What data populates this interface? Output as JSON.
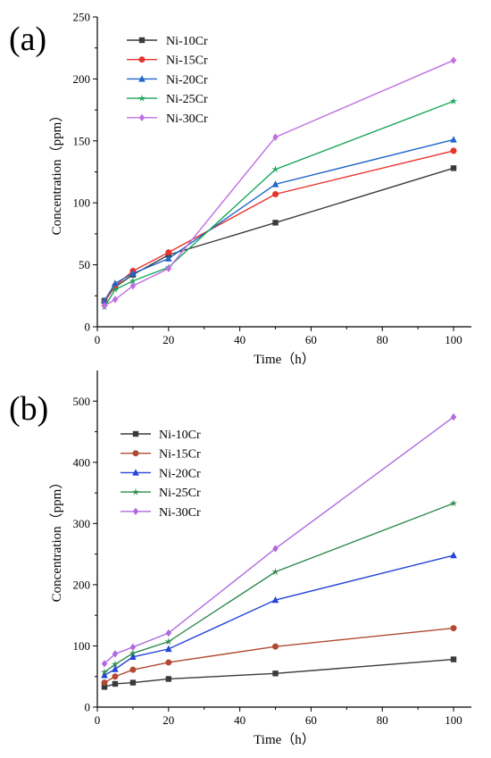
{
  "chart_data": [
    {
      "type": "line",
      "panel_label": "(a)",
      "xlabel": "Time（h）",
      "ylabel": "Concentration（ppm）",
      "xlim": [
        0,
        105
      ],
      "ylim": [
        0,
        250
      ],
      "xticks": [
        0,
        20,
        40,
        60,
        80,
        100
      ],
      "yticks": [
        0,
        50,
        100,
        150,
        200,
        250
      ],
      "legend_position": "top-left",
      "grid": false,
      "x": [
        2,
        5,
        10,
        20,
        50,
        100
      ],
      "series": [
        {
          "name": "Ni-10Cr",
          "color": "#3a3a3a",
          "marker": "square",
          "values": [
            21,
            32,
            42,
            58,
            84,
            128
          ]
        },
        {
          "name": "Ni-15Cr",
          "color": "#e8322c",
          "marker": "circle",
          "values": [
            20,
            33,
            45,
            60,
            107,
            142
          ]
        },
        {
          "name": "Ni-20Cr",
          "color": "#1f66c8",
          "marker": "triangle",
          "values": [
            21,
            35,
            43,
            55,
            115,
            151
          ]
        },
        {
          "name": "Ni-25Cr",
          "color": "#1aa65a",
          "marker": "star",
          "values": [
            16,
            30,
            37,
            48,
            127,
            182
          ]
        },
        {
          "name": "Ni-30Cr",
          "color": "#c06ee0",
          "marker": "diamond",
          "values": [
            17,
            22,
            33,
            47,
            153,
            215
          ]
        }
      ]
    },
    {
      "type": "line",
      "panel_label": "(b)",
      "xlabel": "Time（h）",
      "ylabel": "Concentration（ppm）",
      "xlim": [
        0,
        105
      ],
      "ylim": [
        0,
        550
      ],
      "xticks": [
        0,
        20,
        40,
        60,
        80,
        100
      ],
      "yticks": [
        0,
        100,
        200,
        300,
        400,
        500
      ],
      "legend_position": "top-left",
      "grid": false,
      "x": [
        2,
        5,
        10,
        20,
        50,
        100
      ],
      "series": [
        {
          "name": "Ni-10Cr",
          "color": "#3a3a3a",
          "marker": "square",
          "values": [
            33,
            38,
            40,
            46,
            55,
            78
          ]
        },
        {
          "name": "Ni-15Cr",
          "color": "#b04a32",
          "marker": "circle",
          "values": [
            40,
            50,
            61,
            73,
            99,
            129
          ]
        },
        {
          "name": "Ni-20Cr",
          "color": "#2244d8",
          "marker": "triangle",
          "values": [
            52,
            62,
            82,
            95,
            175,
            248
          ]
        },
        {
          "name": "Ni-25Cr",
          "color": "#2f8a4f",
          "marker": "star",
          "values": [
            57,
            70,
            88,
            107,
            221,
            333
          ]
        },
        {
          "name": "Ni-30Cr",
          "color": "#b06ae0",
          "marker": "diamond",
          "values": [
            71,
            87,
            98,
            121,
            259,
            474
          ]
        }
      ]
    }
  ]
}
